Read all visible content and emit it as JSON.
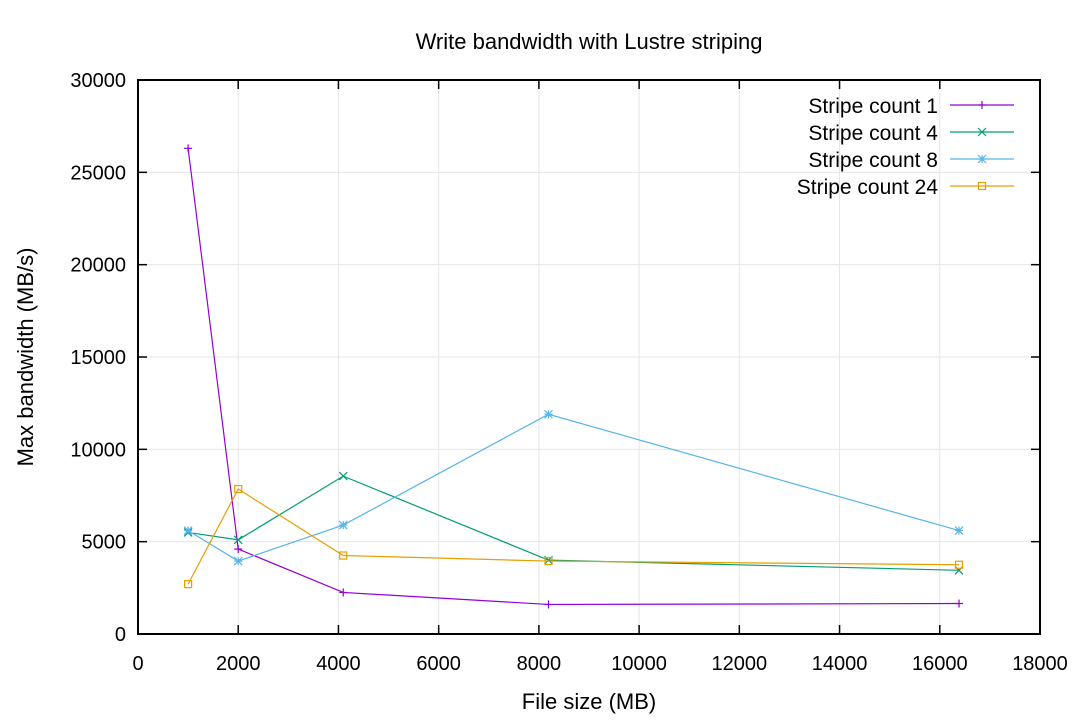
{
  "chart_data": {
    "type": "line",
    "title": "Write bandwidth with Lustre striping",
    "xlabel": "File size (MB)",
    "ylabel": "Max bandwidth (MB/s)",
    "xlim": [
      0,
      18000
    ],
    "ylim": [
      0,
      30000
    ],
    "xticks": [
      0,
      2000,
      4000,
      6000,
      8000,
      10000,
      12000,
      14000,
      16000,
      18000
    ],
    "yticks": [
      0,
      5000,
      10000,
      15000,
      20000,
      25000,
      30000
    ],
    "grid": true,
    "legend_position": "top-right",
    "x": [
      1000,
      2000,
      4096,
      8192,
      16384
    ],
    "series": [
      {
        "name": "Stripe count 1",
        "color": "#9400d3",
        "marker": "plus",
        "values": [
          26300,
          4600,
          2250,
          1600,
          1650
        ]
      },
      {
        "name": "Stripe count 4",
        "color": "#009e73",
        "marker": "cross",
        "values": [
          5500,
          5100,
          8550,
          4000,
          3450
        ]
      },
      {
        "name": "Stripe count 8",
        "color": "#56b4e9",
        "marker": "star",
        "values": [
          5600,
          3950,
          5900,
          11900,
          5600
        ]
      },
      {
        "name": "Stripe count 24",
        "color": "#e69f00",
        "marker": "square",
        "values": [
          2700,
          7850,
          4250,
          3950,
          3750
        ]
      }
    ]
  }
}
